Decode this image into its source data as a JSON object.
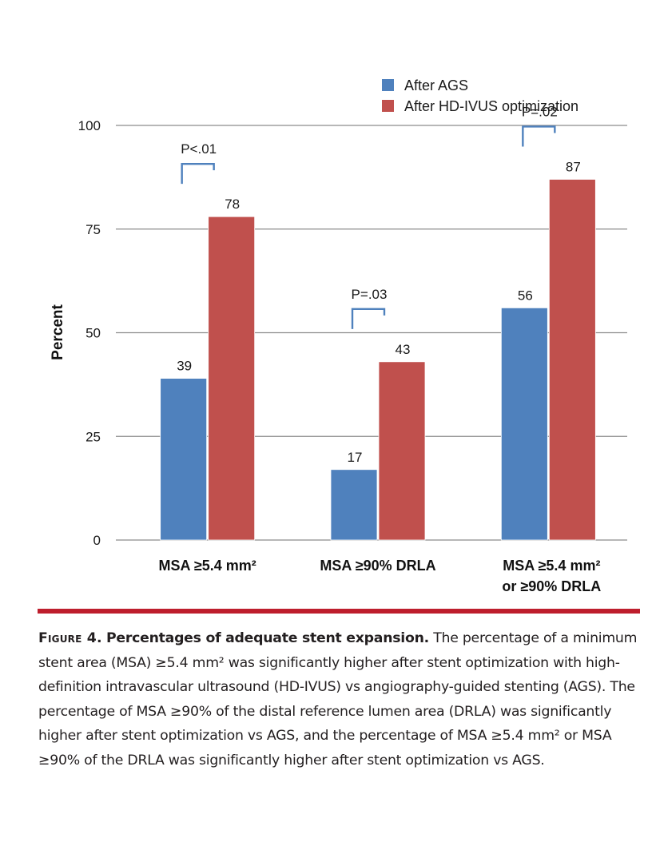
{
  "chart_data": {
    "type": "bar",
    "title": "",
    "xlabel": "",
    "ylabel": "Percent",
    "ylim": [
      0,
      100
    ],
    "yticks": [
      0,
      25,
      50,
      75,
      100
    ],
    "grid": true,
    "legend_position": "top-right",
    "categories": [
      [
        "MSA ≥5.4 mm²"
      ],
      [
        "MSA ≥90% DRLA"
      ],
      [
        "MSA ≥5.4 mm²",
        "or ≥90% DRLA"
      ]
    ],
    "series": [
      {
        "name": "After AGS",
        "color": "#4F81BD",
        "values": [
          39,
          17,
          56
        ]
      },
      {
        "name": "After HD-IVUS optimization",
        "color": "#C0504D",
        "values": [
          78,
          43,
          87
        ]
      }
    ],
    "annotations": [
      {
        "category_index": 0,
        "text": "P<.01"
      },
      {
        "category_index": 1,
        "text": "P=.03"
      },
      {
        "category_index": 2,
        "text": "P=.02"
      }
    ],
    "bracket_color": "#4F81BD"
  },
  "rule_color": "#BE1E2D",
  "caption": {
    "figure_number": "Figure 4.",
    "title": "Percentages of adequate stent expansion.",
    "body": "The percentage of a minimum stent area (MSA) ≥5.4 mm² was significantly higher after stent optimization with high-definition intravascular ultrasound (HD-IVUS) vs angiography-guided stenting (AGS). The percentage of MSA ≥90% of the distal reference lumen area (DRLA) was significantly higher after stent optimization vs AGS, and the percentage of MSA ≥5.4 mm² or MSA ≥90% of the DRLA was significantly higher after stent optimization vs AGS."
  }
}
